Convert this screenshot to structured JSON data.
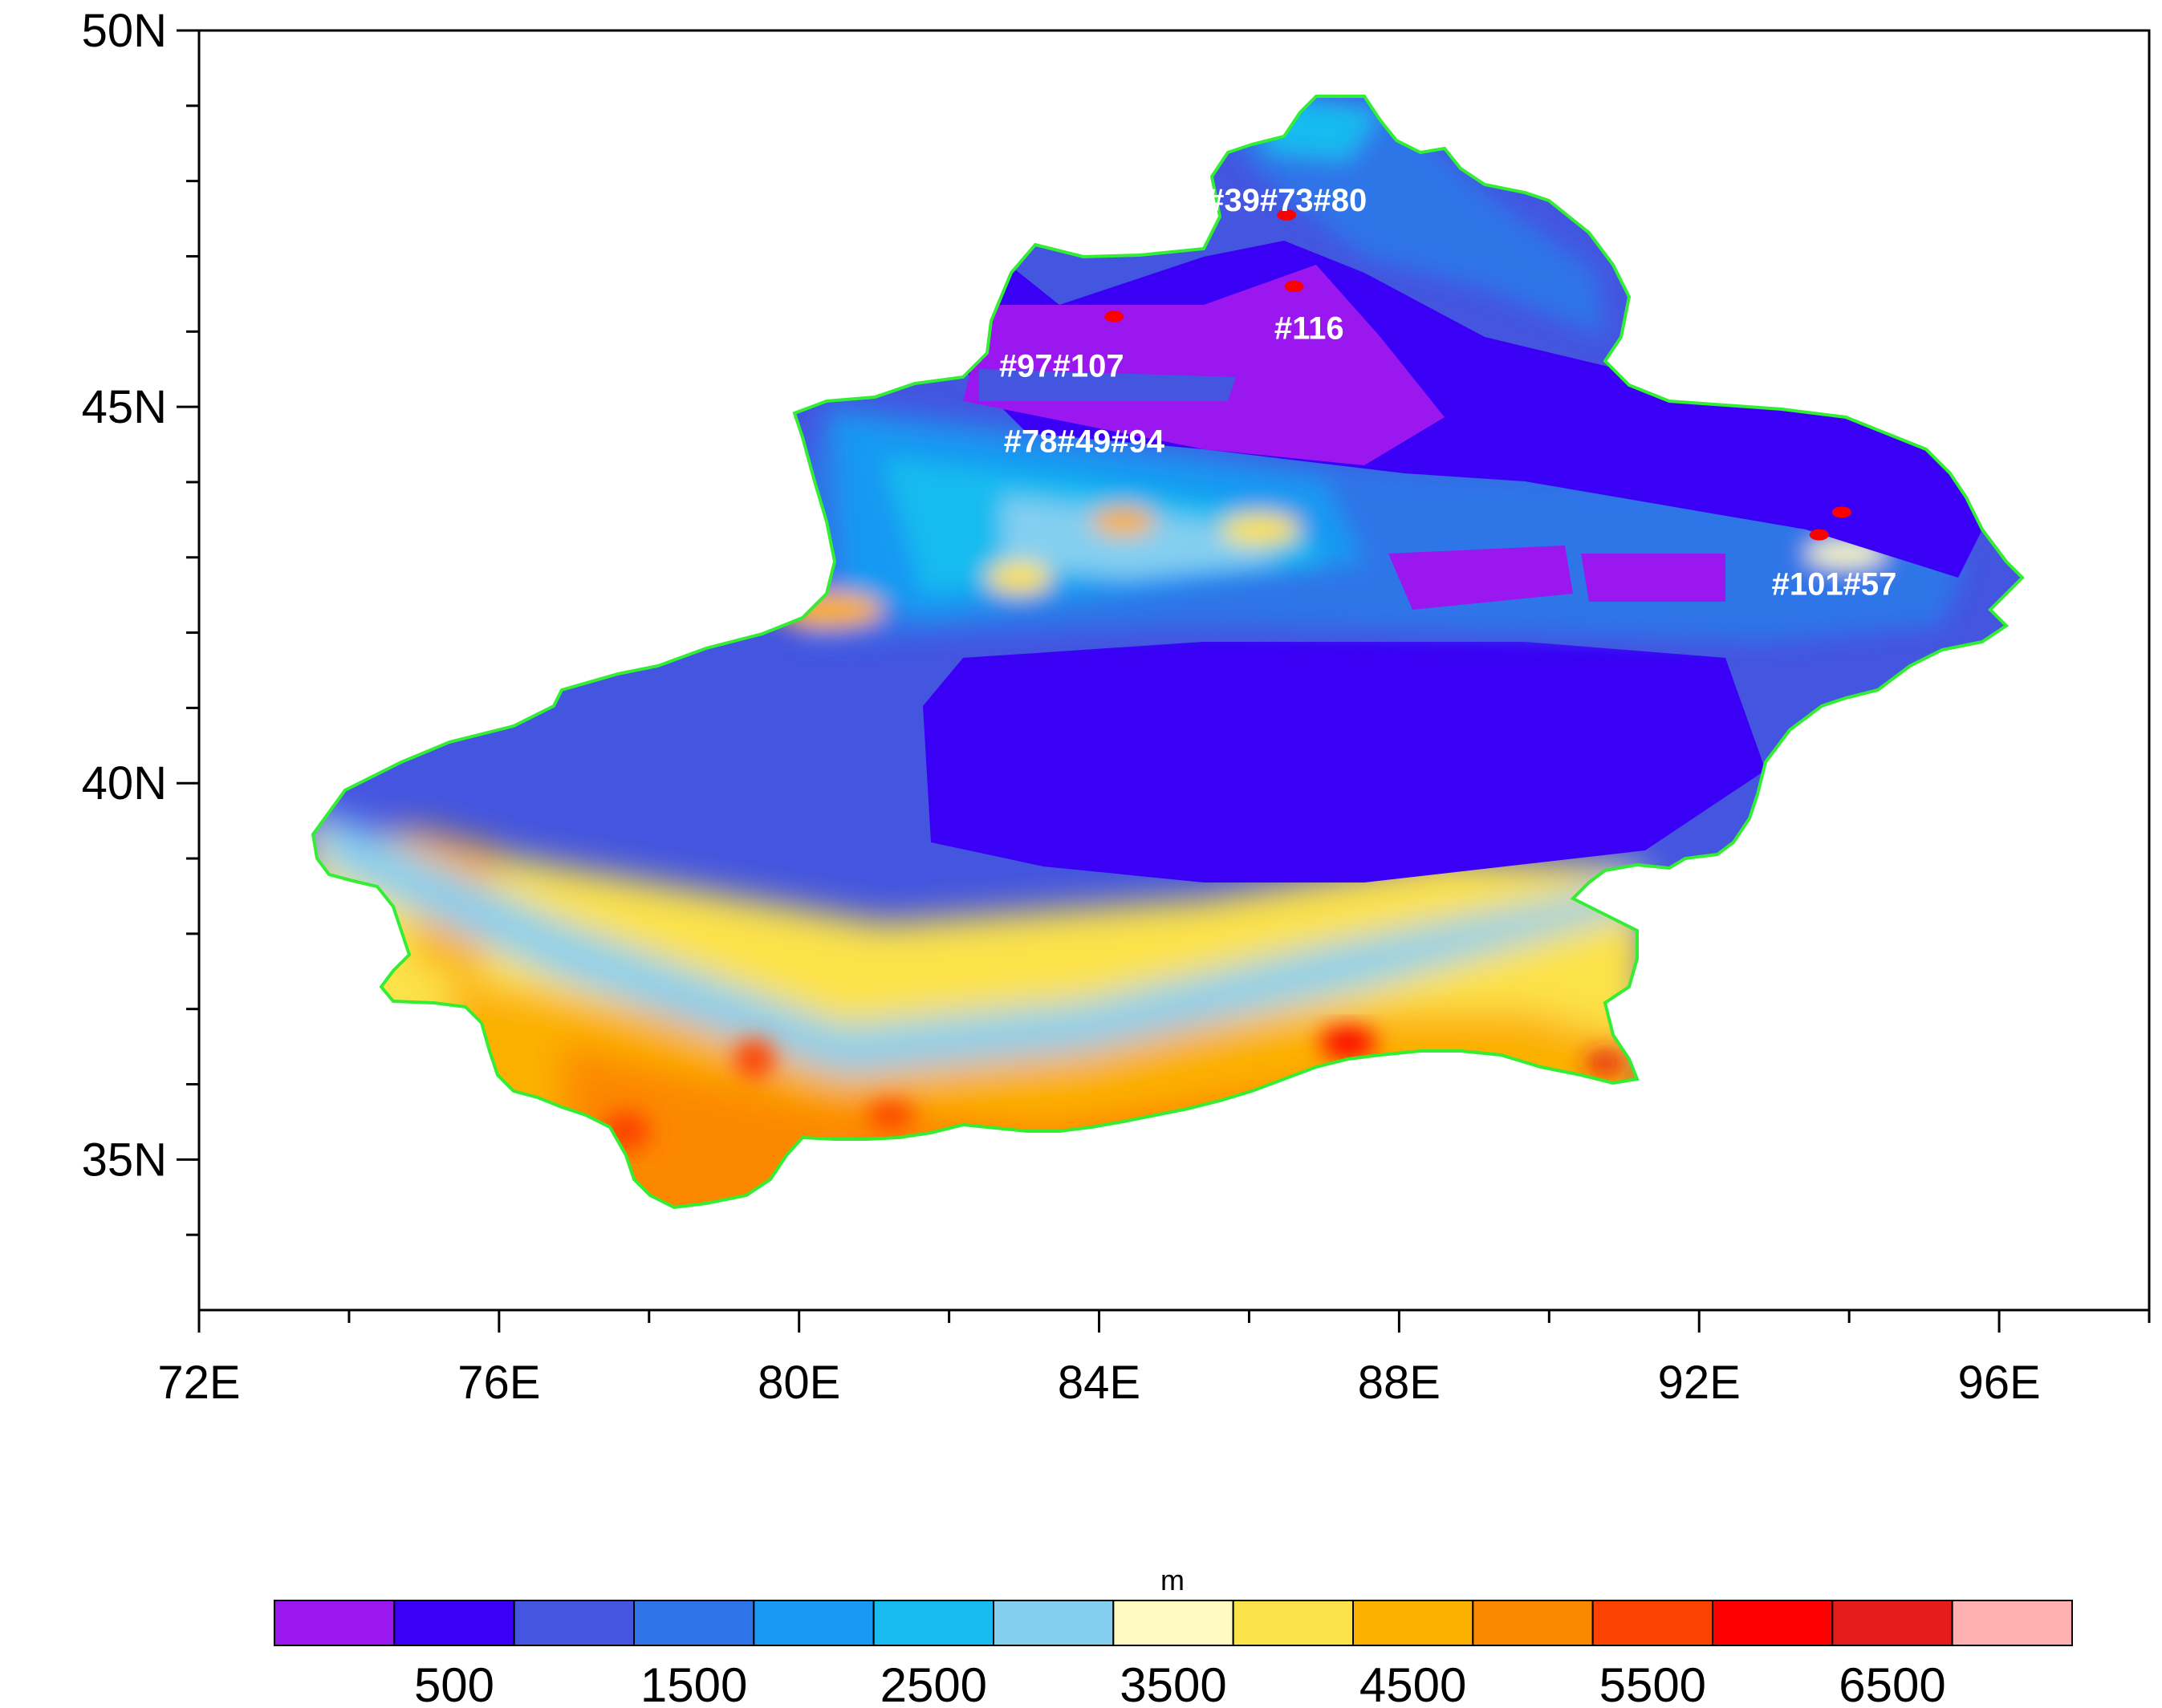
{
  "map": {
    "x_ticks": [
      {
        "lon": 72,
        "label": "72E"
      },
      {
        "lon": 76,
        "label": "76E"
      },
      {
        "lon": 80,
        "label": "80E"
      },
      {
        "lon": 84,
        "label": "84E"
      },
      {
        "lon": 88,
        "label": "88E"
      },
      {
        "lon": 92,
        "label": "92E"
      },
      {
        "lon": 96,
        "label": "96E"
      }
    ],
    "y_ticks": [
      {
        "lat": 50,
        "label": "50N"
      },
      {
        "lat": 45,
        "label": "45N"
      },
      {
        "lat": 40,
        "label": "40N"
      },
      {
        "lat": 35,
        "label": "35N"
      }
    ],
    "lon_range": [
      72,
      98
    ],
    "lat_range": [
      33,
      50
    ],
    "boundary_color": "#33ee33",
    "station_labels": [
      {
        "text": "#39#73#80",
        "lon": 86.5,
        "lat": 47.6
      },
      {
        "text": "#116",
        "lon": 86.8,
        "lat": 45.9
      },
      {
        "text": "#97#107",
        "lon": 83.5,
        "lat": 45.4
      },
      {
        "text": "#78#49#94",
        "lon": 83.8,
        "lat": 44.4
      },
      {
        "text": "#101#57",
        "lon": 93.8,
        "lat": 42.5
      }
    ],
    "station_markers": [
      {
        "lon": 86.5,
        "lat": 47.55
      },
      {
        "lon": 86.6,
        "lat": 46.6
      },
      {
        "lon": 84.2,
        "lat": 46.2
      },
      {
        "lon": 93.6,
        "lat": 43.3
      },
      {
        "lon": 93.9,
        "lat": 43.6
      }
    ]
  },
  "colorbar": {
    "unit": "m",
    "colors": [
      "#9a17f0",
      "#3a00f5",
      "#4455e0",
      "#2e74e8",
      "#1899f2",
      "#18bbf0",
      "#84cff0",
      "#fffbc0",
      "#fce24a",
      "#fcb000",
      "#fc8800",
      "#fc4200",
      "#fc0000",
      "#e41c1c",
      "#ffb0b0"
    ],
    "labels": [
      {
        "boundary": 2,
        "text": "500"
      },
      {
        "boundary": 4,
        "text": "1500"
      },
      {
        "boundary": 6,
        "text": "2500"
      },
      {
        "boundary": 8,
        "text": "3500"
      },
      {
        "boundary": 10,
        "text": "4500"
      },
      {
        "boundary": 12,
        "text": "5500"
      },
      {
        "boundary": 14,
        "text": "6500"
      }
    ]
  }
}
